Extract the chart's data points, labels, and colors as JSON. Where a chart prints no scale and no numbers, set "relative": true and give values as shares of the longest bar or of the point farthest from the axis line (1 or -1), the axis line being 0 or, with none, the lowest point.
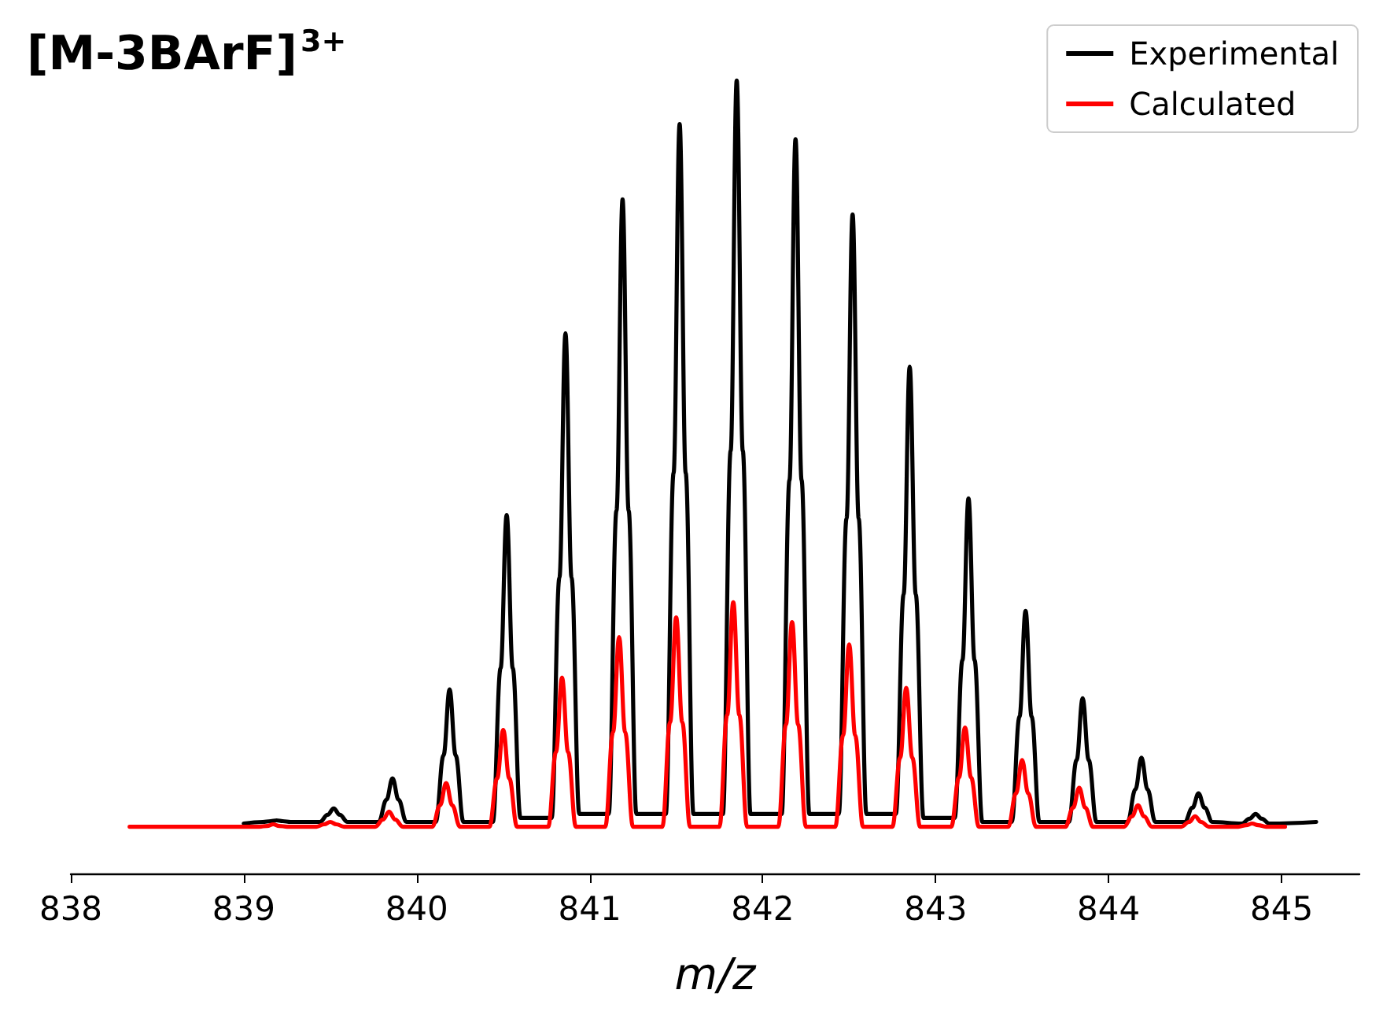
{
  "chart_data": {
    "type": "line",
    "title": "[M-3BArF]$^{3+}$",
    "xlabel": "m/z",
    "relative": true,
    "xlim": [
      838,
      845.45
    ],
    "xticks": [
      838,
      839,
      840,
      841,
      842,
      843,
      844,
      845
    ],
    "legend": "top right",
    "grid": false,
    "marker": "none",
    "line_style": "solid",
    "series": [
      {
        "name": "Experimental",
        "color": "#000000",
        "x": [
          839.0,
          839.11,
          839.155,
          839.19,
          839.225,
          839.27,
          839.44,
          839.485,
          839.52,
          839.555,
          839.6,
          839.78,
          839.825,
          839.86,
          839.895,
          839.94,
          840.11,
          840.155,
          840.19,
          840.225,
          840.27,
          840.44,
          840.485,
          840.52,
          840.555,
          840.6,
          840.78,
          840.825,
          840.86,
          840.895,
          840.94,
          841.11,
          841.155,
          841.19,
          841.225,
          841.27,
          841.44,
          841.485,
          841.52,
          841.555,
          841.6,
          841.77,
          841.815,
          841.85,
          841.885,
          841.93,
          842.11,
          842.155,
          842.19,
          842.225,
          842.27,
          842.44,
          842.485,
          842.52,
          842.555,
          842.6,
          842.77,
          842.815,
          842.85,
          842.885,
          842.93,
          843.11,
          843.155,
          843.19,
          843.225,
          843.27,
          843.44,
          843.485,
          843.52,
          843.555,
          843.6,
          843.77,
          843.815,
          843.85,
          843.885,
          843.93,
          844.11,
          844.155,
          844.19,
          844.225,
          844.27,
          844.44,
          844.485,
          844.52,
          844.555,
          844.6,
          844.77,
          844.815,
          844.85,
          844.885,
          844.93,
          845.2
        ],
        "values": [
          0.063,
          0.065,
          0.066,
          0.067,
          0.066,
          0.065,
          0.065,
          0.074,
          0.082,
          0.074,
          0.065,
          0.065,
          0.093,
          0.12,
          0.093,
          0.065,
          0.065,
          0.149,
          0.232,
          0.149,
          0.065,
          0.065,
          0.259,
          0.452,
          0.259,
          0.07,
          0.07,
          0.373,
          0.681,
          0.373,
          0.075,
          0.075,
          0.458,
          0.85,
          0.458,
          0.075,
          0.075,
          0.505,
          0.945,
          0.505,
          0.075,
          0.075,
          0.533,
          1,
          0.533,
          0.075,
          0.075,
          0.496,
          0.926,
          0.496,
          0.075,
          0.075,
          0.448,
          0.831,
          0.448,
          0.075,
          0.075,
          0.352,
          0.639,
          0.352,
          0.07,
          0.07,
          0.269,
          0.473,
          0.269,
          0.065,
          0.065,
          0.198,
          0.331,
          0.198,
          0.065,
          0.065,
          0.143,
          0.221,
          0.143,
          0.065,
          0.065,
          0.106,
          0.146,
          0.106,
          0.065,
          0.065,
          0.083,
          0.101,
          0.083,
          0.065,
          0.063,
          0.069,
          0.075,
          0.069,
          0.063,
          0.065
        ]
      },
      {
        "name": "Calculated",
        "color": "#ff0000",
        "x": [
          838.34,
          839.09,
          839.135,
          839.17,
          839.205,
          839.25,
          839.42,
          839.465,
          839.5,
          839.535,
          839.58,
          839.76,
          839.805,
          839.84,
          839.875,
          839.92,
          840.09,
          840.135,
          840.17,
          840.205,
          840.25,
          840.42,
          840.465,
          840.5,
          840.535,
          840.58,
          840.76,
          840.805,
          840.84,
          840.875,
          840.92,
          841.09,
          841.135,
          841.17,
          841.205,
          841.25,
          841.42,
          841.465,
          841.5,
          841.535,
          841.58,
          841.75,
          841.795,
          841.83,
          841.865,
          841.91,
          842.09,
          842.135,
          842.17,
          842.205,
          842.25,
          842.42,
          842.465,
          842.5,
          842.535,
          842.58,
          842.75,
          842.795,
          842.83,
          842.865,
          842.91,
          843.09,
          843.135,
          843.17,
          843.205,
          843.25,
          843.42,
          843.465,
          843.5,
          843.535,
          843.58,
          843.75,
          843.795,
          843.83,
          843.865,
          843.91,
          844.09,
          844.135,
          844.17,
          844.205,
          844.25,
          844.42,
          844.465,
          844.5,
          844.535,
          844.58,
          844.75,
          844.795,
          844.83,
          844.865,
          844.91,
          845.02
        ],
        "values": [
          0.059,
          0.059,
          0.06,
          0.062,
          0.06,
          0.059,
          0.059,
          0.062,
          0.065,
          0.062,
          0.059,
          0.059,
          0.068,
          0.078,
          0.068,
          0.059,
          0.059,
          0.086,
          0.114,
          0.086,
          0.059,
          0.059,
          0.12,
          0.181,
          0.12,
          0.059,
          0.059,
          0.153,
          0.247,
          0.153,
          0.059,
          0.059,
          0.178,
          0.298,
          0.178,
          0.059,
          0.059,
          0.191,
          0.323,
          0.191,
          0.059,
          0.059,
          0.2,
          0.342,
          0.2,
          0.059,
          0.059,
          0.188,
          0.317,
          0.188,
          0.059,
          0.059,
          0.174,
          0.289,
          0.174,
          0.059,
          0.059,
          0.146,
          0.234,
          0.146,
          0.059,
          0.059,
          0.121,
          0.184,
          0.121,
          0.059,
          0.059,
          0.101,
          0.143,
          0.101,
          0.059,
          0.059,
          0.083,
          0.108,
          0.083,
          0.059,
          0.059,
          0.072,
          0.086,
          0.072,
          0.059,
          0.059,
          0.065,
          0.072,
          0.065,
          0.059,
          0.059,
          0.061,
          0.063,
          0.061,
          0.059,
          0.059
        ]
      }
    ]
  }
}
